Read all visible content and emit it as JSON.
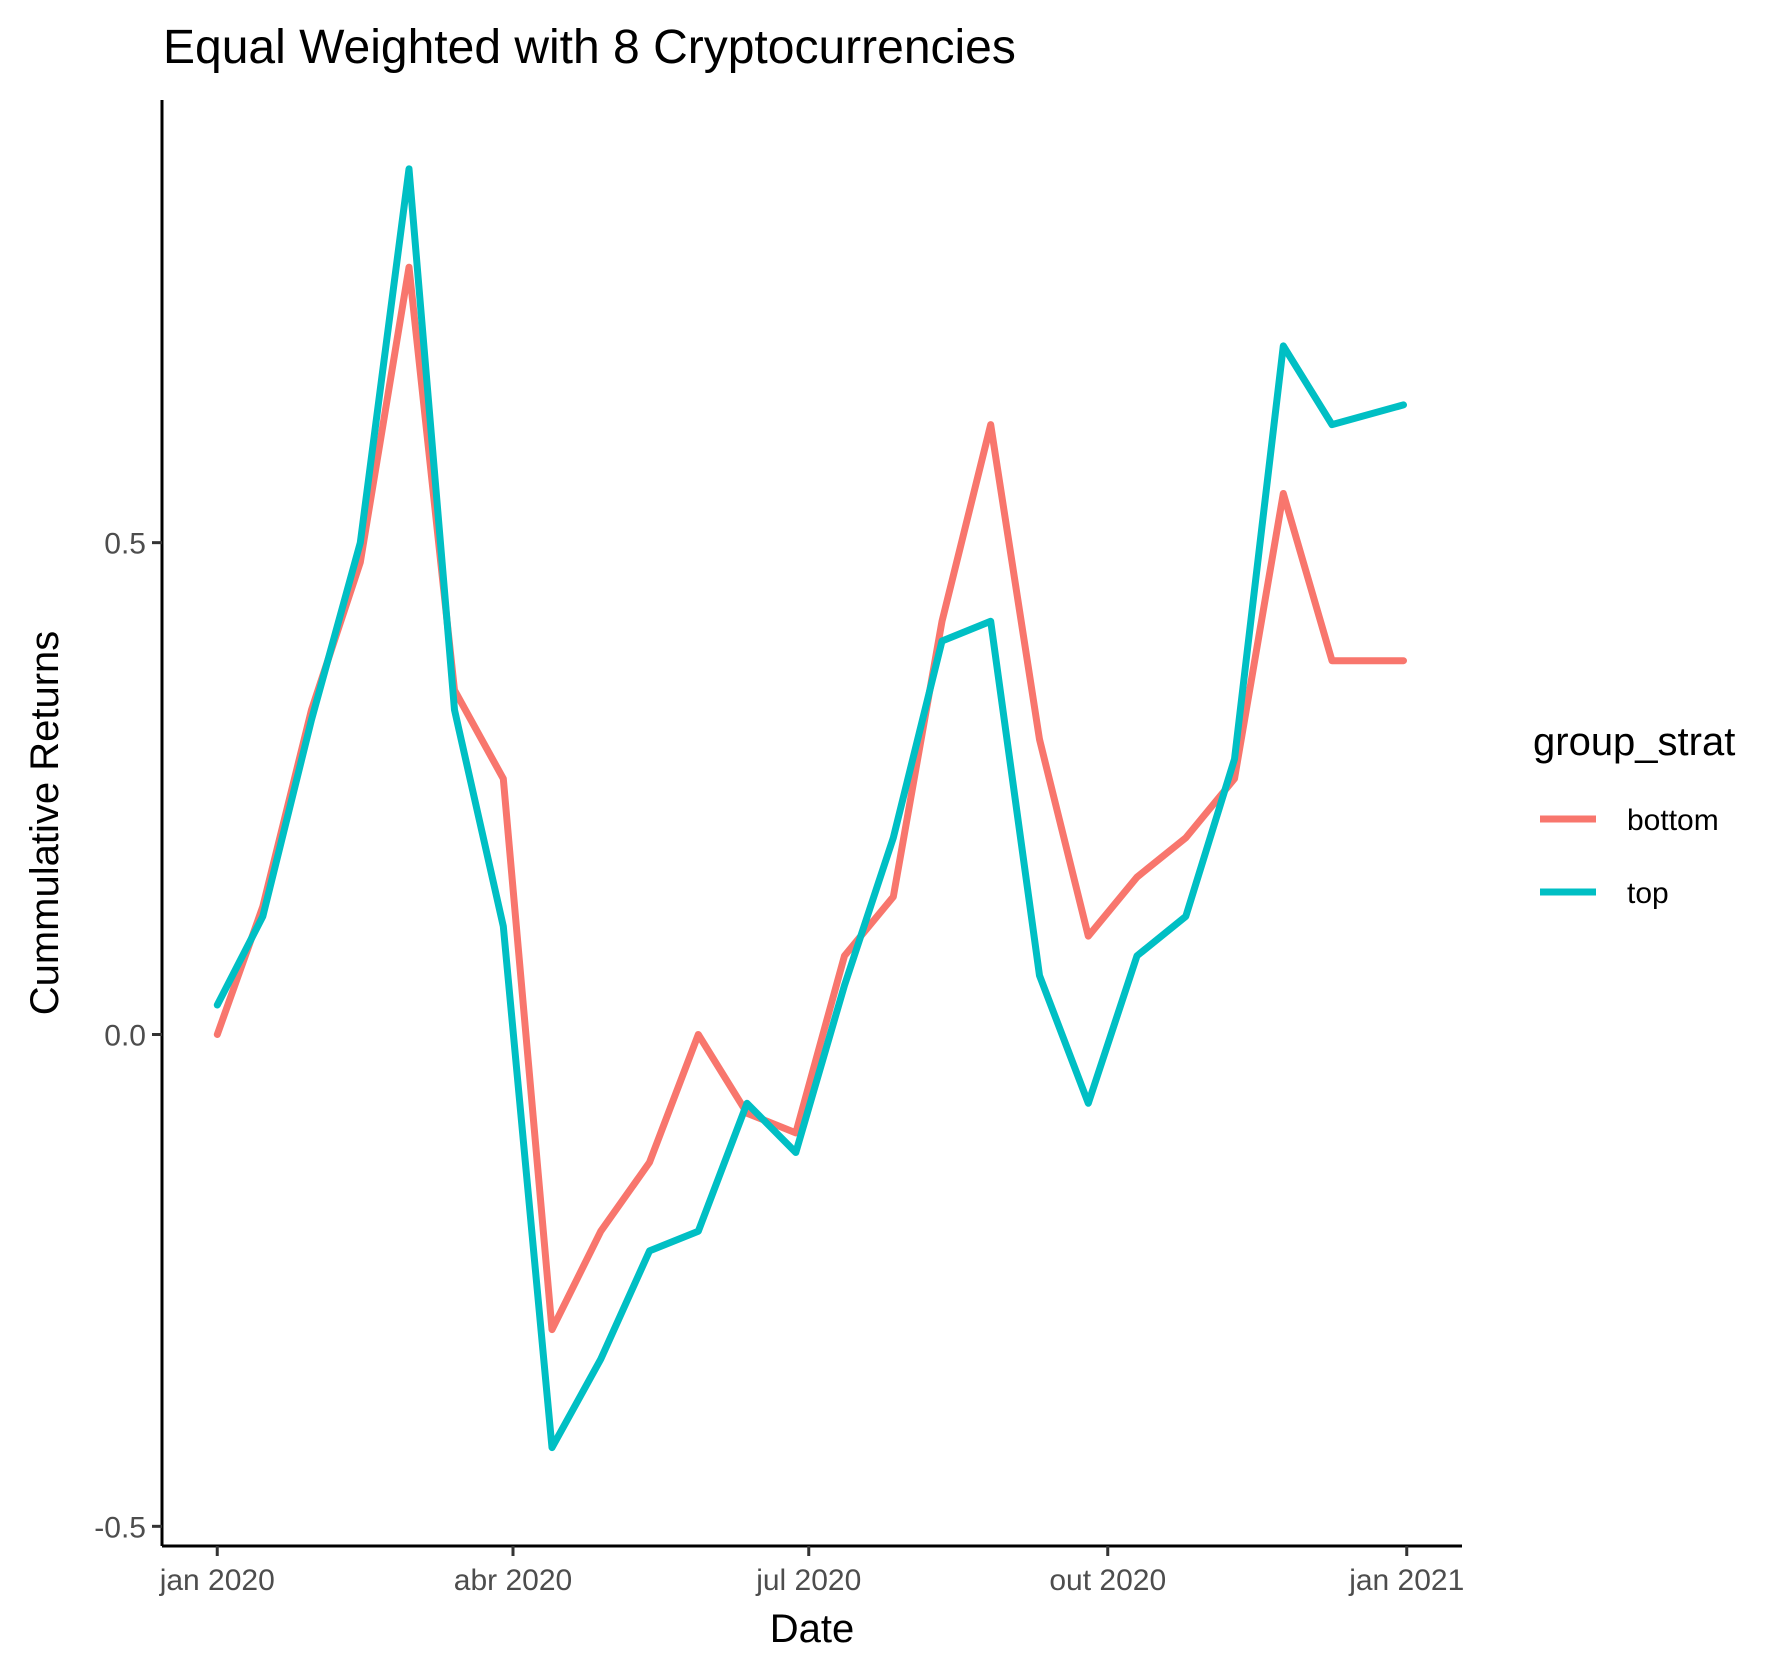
{
  "chart_data": {
    "type": "line",
    "title": "Equal Weighted with 8 Cryptocurrencies",
    "xlabel": "Date",
    "ylabel": "Cummulative Returns",
    "x_ticks": [
      {
        "label": "jan 2020",
        "day": 0
      },
      {
        "label": "abr 2020",
        "day": 91
      },
      {
        "label": "jul 2020",
        "day": 182
      },
      {
        "label": "out 2020",
        "day": 274
      },
      {
        "label": "jan 2021",
        "day": 366
      }
    ],
    "y_ticks": [
      {
        "label": "-0.5",
        "value": -0.5
      },
      {
        "label": "0.0",
        "value": 0.0
      },
      {
        "label": "0.5",
        "value": 0.5
      }
    ],
    "xlim_days": [
      -17,
      383
    ],
    "ylim": [
      -0.52,
      0.95
    ],
    "grid": false,
    "legend": {
      "title": "group_strat",
      "position": "right"
    },
    "x": [
      "2020-01-01",
      "2020-01-15",
      "2020-01-30",
      "2020-02-14",
      "2020-02-29",
      "2020-03-14",
      "2020-03-29",
      "2020-04-13",
      "2020-04-28",
      "2020-05-13",
      "2020-05-28",
      "2020-06-12",
      "2020-06-27",
      "2020-07-12",
      "2020-07-27",
      "2020-08-11",
      "2020-08-26",
      "2020-09-10",
      "2020-09-25",
      "2020-10-10",
      "2020-10-25",
      "2020-11-09",
      "2020-11-24",
      "2020-12-09",
      "2020-12-31"
    ],
    "series": [
      {
        "name": "bottom",
        "color": "#F8766D",
        "values": [
          0.0,
          0.13,
          0.33,
          0.48,
          0.78,
          0.35,
          0.26,
          -0.3,
          -0.2,
          -0.13,
          0.0,
          -0.08,
          -0.1,
          0.08,
          0.14,
          0.42,
          0.62,
          0.3,
          0.1,
          0.16,
          0.2,
          0.26,
          0.55,
          0.38,
          0.38
        ]
      },
      {
        "name": "top",
        "color": "#00BFC4",
        "values": [
          0.03,
          0.12,
          0.32,
          0.5,
          0.88,
          0.33,
          0.11,
          -0.42,
          -0.33,
          -0.22,
          -0.2,
          -0.07,
          -0.12,
          0.05,
          0.2,
          0.4,
          0.42,
          0.06,
          -0.07,
          0.08,
          0.12,
          0.28,
          0.7,
          0.62,
          0.64
        ]
      }
    ]
  }
}
